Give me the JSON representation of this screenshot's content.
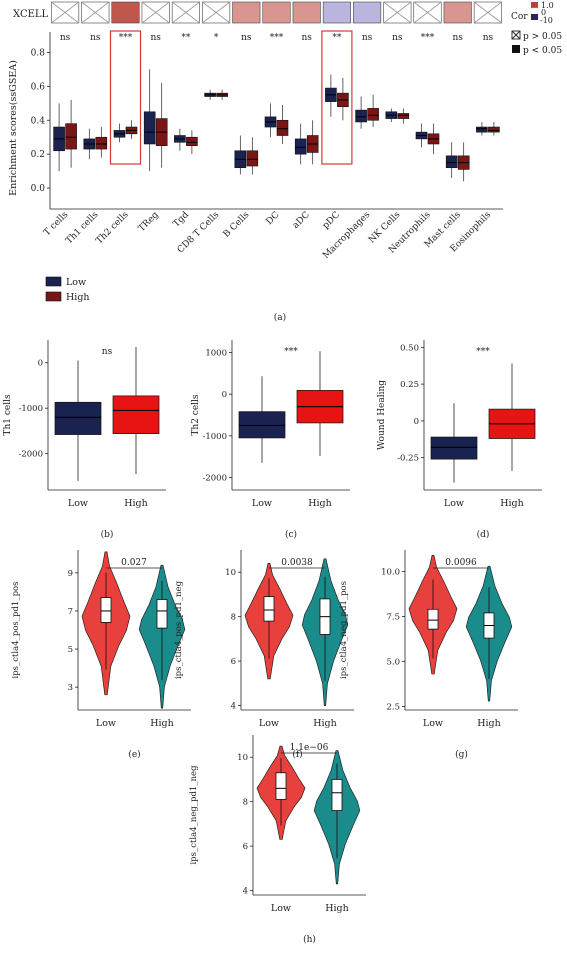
{
  "heatmap_row_label": "XCELL",
  "cor_legend": {
    "title": "Cor",
    "ticks": [
      "1.0",
      "0",
      "-10"
    ]
  },
  "pval_legend": {
    "cross_label": "p > 0.05",
    "solid_label": "p < 0.05"
  },
  "group_legend": {
    "low": "Low",
    "high": "High"
  },
  "colors": {
    "low": "#1a2250",
    "high": "#7a1616",
    "bright_red": "#e81414",
    "violin_red": "#e8403c",
    "violin_teal": "#1b8c8c",
    "highlight": "#d23a3a"
  },
  "chart_data": [
    {
      "panel": "(a)",
      "type": "box",
      "ylabel": "Enrichment scores(ssGSEA)",
      "ylim": [
        -0.1,
        0.85
      ],
      "yticks": [
        "0.0",
        "0.2",
        "0.4",
        "0.6",
        "0.8"
      ],
      "categories": [
        "T cells",
        "Th1 cells",
        "Th2 cells",
        "TReg",
        "Tgd",
        "CD8 T Cells",
        "B Cells",
        "DC",
        "aDC",
        "pDC",
        "Macrophages",
        "NK Cells",
        "Neutrophils",
        "Mast cells",
        "Eosinophils"
      ],
      "significance": [
        "ns",
        "ns",
        "***",
        "ns",
        "**",
        "*",
        "ns",
        "***",
        "ns",
        "**",
        "ns",
        "ns",
        "***",
        "ns",
        "ns"
      ],
      "heatmap": [
        {
          "cell": "cross",
          "color": "#ffffff"
        },
        {
          "cell": "cross",
          "color": "#ffffff"
        },
        {
          "cell": "solid",
          "color": "#c0574c"
        },
        {
          "cell": "cross",
          "color": "#ffffff"
        },
        {
          "cell": "cross",
          "color": "#ffffff"
        },
        {
          "cell": "cross",
          "color": "#ffffff"
        },
        {
          "cell": "solid",
          "color": "#d99690"
        },
        {
          "cell": "solid",
          "color": "#d99690"
        },
        {
          "cell": "solid",
          "color": "#d99690"
        },
        {
          "cell": "solid",
          "color": "#b9b5dd"
        },
        {
          "cell": "solid",
          "color": "#b9b5dd"
        },
        {
          "cell": "cross",
          "color": "#ffffff"
        },
        {
          "cell": "cross",
          "color": "#ffffff"
        },
        {
          "cell": "solid",
          "color": "#d99690"
        },
        {
          "cell": "cross",
          "color": "#ffffff"
        }
      ],
      "highlighted": [
        "Th2 cells",
        "pDC"
      ],
      "series": [
        {
          "name": "Low",
          "boxes": [
            [
              0.1,
              0.22,
              0.29,
              0.36,
              0.5
            ],
            [
              0.17,
              0.23,
              0.26,
              0.29,
              0.35
            ],
            [
              0.27,
              0.3,
              0.32,
              0.34,
              0.38
            ],
            [
              0.1,
              0.26,
              0.33,
              0.45,
              0.7
            ],
            [
              0.22,
              0.27,
              0.29,
              0.31,
              0.35
            ],
            [
              0.52,
              0.54,
              0.55,
              0.56,
              0.58
            ],
            [
              0.08,
              0.12,
              0.17,
              0.22,
              0.31
            ],
            [
              0.3,
              0.36,
              0.39,
              0.42,
              0.5
            ],
            [
              0.14,
              0.2,
              0.24,
              0.29,
              0.38
            ],
            [
              0.42,
              0.51,
              0.55,
              0.59,
              0.67
            ],
            [
              0.35,
              0.39,
              0.42,
              0.46,
              0.54
            ],
            [
              0.39,
              0.41,
              0.43,
              0.45,
              0.47
            ],
            [
              0.24,
              0.29,
              0.31,
              0.33,
              0.38
            ],
            [
              0.06,
              0.12,
              0.15,
              0.19,
              0.27
            ],
            [
              0.31,
              0.33,
              0.35,
              0.36,
              0.39
            ]
          ]
        },
        {
          "name": "High",
          "boxes": [
            [
              0.12,
              0.23,
              0.3,
              0.38,
              0.52
            ],
            [
              0.18,
              0.23,
              0.26,
              0.3,
              0.36
            ],
            [
              0.29,
              0.32,
              0.34,
              0.36,
              0.4
            ],
            [
              0.12,
              0.25,
              0.33,
              0.41,
              0.62
            ],
            [
              0.2,
              0.25,
              0.27,
              0.3,
              0.34
            ],
            [
              0.52,
              0.54,
              0.55,
              0.56,
              0.58
            ],
            [
              0.08,
              0.13,
              0.17,
              0.22,
              0.3
            ],
            [
              0.26,
              0.31,
              0.35,
              0.4,
              0.49
            ],
            [
              0.14,
              0.21,
              0.26,
              0.31,
              0.4
            ],
            [
              0.4,
              0.48,
              0.52,
              0.56,
              0.65
            ],
            [
              0.36,
              0.4,
              0.43,
              0.47,
              0.55
            ],
            [
              0.38,
              0.41,
              0.43,
              0.44,
              0.47
            ],
            [
              0.2,
              0.26,
              0.29,
              0.32,
              0.38
            ],
            [
              0.04,
              0.11,
              0.15,
              0.19,
              0.27
            ],
            [
              0.31,
              0.33,
              0.34,
              0.36,
              0.39
            ]
          ]
        }
      ]
    },
    {
      "panel": "(b)",
      "type": "box",
      "ylabel": "Th1 cells",
      "significance": "ns",
      "categories": [
        "Low",
        "High"
      ],
      "ylim": [
        -2800,
        500
      ],
      "yticks": [
        0,
        -1000,
        -2000
      ],
      "boxes": [
        [
          -2600,
          -1580,
          -1200,
          -870,
          50
        ],
        [
          -2450,
          -1560,
          -1050,
          -730,
          350
        ]
      ]
    },
    {
      "panel": "(c)",
      "type": "box",
      "ylabel": "Th2 cells",
      "significance": "***",
      "categories": [
        "Low",
        "High"
      ],
      "ylim": [
        -2300,
        1300
      ],
      "yticks": [
        1000,
        0,
        -1000,
        -2000
      ],
      "boxes": [
        [
          -1650,
          -1050,
          -750,
          -420,
          430
        ],
        [
          -1480,
          -690,
          -300,
          90,
          1030
        ]
      ]
    },
    {
      "panel": "(d)",
      "type": "box",
      "ylabel": "Wound Healing",
      "significance": "***",
      "categories": [
        "Low",
        "High"
      ],
      "ylim": [
        -0.47,
        0.55
      ],
      "yticks": [
        "0.50",
        "0.25",
        "0",
        "-0.25"
      ],
      "boxes": [
        [
          -0.42,
          -0.26,
          -0.18,
          -0.11,
          0.12
        ],
        [
          -0.34,
          -0.12,
          -0.02,
          0.08,
          0.39
        ]
      ]
    },
    {
      "panel": "(e)",
      "type": "violin",
      "ylabel": "ips_ctla4_pos_pd1_pos",
      "pvalue": "0.027",
      "categories": [
        "Low",
        "High"
      ],
      "ylim": [
        1.8,
        10.2
      ],
      "yticks": [
        9,
        7,
        5,
        3
      ],
      "groups": [
        {
          "min": 2.6,
          "q1": 6.4,
          "median": 7.0,
          "q3": 7.7,
          "max": 10.1
        },
        {
          "min": 1.9,
          "q1": 6.1,
          "median": 7.0,
          "q3": 7.6,
          "max": 9.4
        }
      ]
    },
    {
      "panel": "(f)",
      "type": "violin",
      "ylabel": "ips_ctla4_pos_pd1_neg",
      "pvalue": "0.0038",
      "categories": [
        "Low",
        "High"
      ],
      "ylim": [
        3.8,
        11.0
      ],
      "yticks": [
        10,
        8,
        6,
        4
      ],
      "groups": [
        {
          "min": 5.2,
          "q1": 7.8,
          "median": 8.3,
          "q3": 8.9,
          "max": 10.4
        },
        {
          "min": 4.0,
          "q1": 7.2,
          "median": 8.0,
          "q3": 8.8,
          "max": 10.6
        }
      ]
    },
    {
      "panel": "(g)",
      "type": "violin",
      "ylabel": "ips_ctla4_neg_pd1_pos",
      "pvalue": "0.0096",
      "categories": [
        "Low",
        "High"
      ],
      "ylim": [
        2.3,
        11.2
      ],
      "yticks": [
        "10.0",
        "7.5",
        "5.0",
        "2.5"
      ],
      "groups": [
        {
          "min": 4.3,
          "q1": 6.8,
          "median": 7.3,
          "q3": 7.9,
          "max": 10.9
        },
        {
          "min": 2.8,
          "q1": 6.3,
          "median": 7.0,
          "q3": 7.7,
          "max": 10.3
        }
      ]
    },
    {
      "panel": "(h)",
      "type": "violin",
      "ylabel": "ips_ctla4_neg_pd1_neg",
      "pvalue": "1.1e−06",
      "categories": [
        "Low",
        "High"
      ],
      "ylim": [
        3.8,
        11.0
      ],
      "yticks": [
        10,
        8,
        6,
        4
      ],
      "groups": [
        {
          "min": 6.3,
          "q1": 8.1,
          "median": 8.6,
          "q3": 9.3,
          "max": 10.5
        },
        {
          "min": 4.3,
          "q1": 7.6,
          "median": 8.4,
          "q3": 9.0,
          "max": 10.3
        }
      ]
    }
  ]
}
